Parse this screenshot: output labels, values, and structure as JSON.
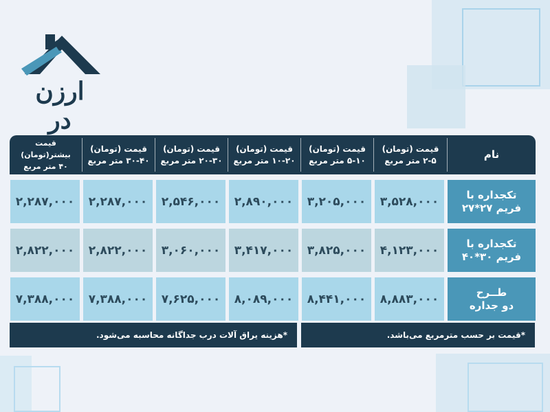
{
  "brand": {
    "logo_text": "ارزن در"
  },
  "table": {
    "headers": [
      "نام",
      "قیمت (تومان)\n۲-۵ متر مربع",
      "قیمت (تومان)\n۵-۱۰ متر مربع",
      "قیمت (تومان)\n۱۰-۲۰ متر مربع",
      "قیمت (تومان)\n۲۰-۳۰ متر مربع",
      "قیمت (تومان)\n۳۰-۴۰ متر مربع",
      "قیمت بیشتر(تومان)\n۴۰ متر مربع"
    ],
    "rows": [
      {
        "name": "تکجداره با\nفریم ۲۷*۲۷",
        "values": [
          "۳,۵۲۸,۰۰۰",
          "۳,۲۰۵,۰۰۰",
          "۲,۸۹۰,۰۰۰",
          "۲,۵۴۶,۰۰۰",
          "۲,۲۸۷,۰۰۰",
          "۲,۲۸۷,۰۰۰"
        ]
      },
      {
        "name": "تکجداره با\nفریم ۳۰*۴۰",
        "values": [
          "۴,۱۲۳,۰۰۰",
          "۳,۸۲۵,۰۰۰",
          "۳,۴۱۷,۰۰۰",
          "۳,۰۶۰,۰۰۰",
          "۲,۸۲۲,۰۰۰",
          "۲,۸۲۲,۰۰۰"
        ]
      },
      {
        "name": "طــرح\nدو جداره",
        "values": [
          "۸,۸۸۳,۰۰۰",
          "۸,۴۴۱,۰۰۰",
          "۸,۰۸۹,۰۰۰",
          "۷,۶۲۵,۰۰۰",
          "۷,۳۸۸,۰۰۰",
          "۷,۳۸۸,۰۰۰"
        ]
      }
    ]
  },
  "notes": {
    "right": "*قیمت بر حسب مترمربع می‌باشد.",
    "left": "*هزینه یراق آلات درب جداگانه محاسبه می‌شود."
  },
  "colors": {
    "navy": "#1d3a4e",
    "teal": "#4a97b8",
    "light_blue": "#a9d7ea",
    "gray_blue": "#bcd6df"
  }
}
